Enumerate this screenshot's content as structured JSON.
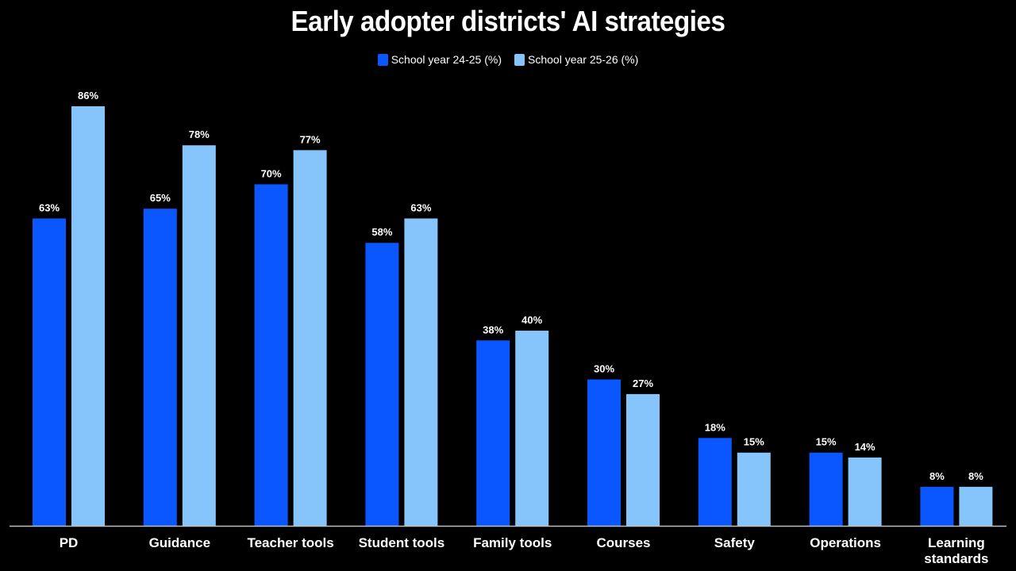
{
  "chart_data": {
    "type": "bar",
    "title": "Early adopter districts' AI strategies",
    "categories": [
      "PD",
      "Guidance",
      "Teacher tools",
      "Student tools",
      "Family tools",
      "Courses",
      "Safety",
      "Operations",
      "Learning standards"
    ],
    "category_lines": [
      [
        "PD"
      ],
      [
        "Guidance"
      ],
      [
        "Teacher tools"
      ],
      [
        "Student tools"
      ],
      [
        "Family tools"
      ],
      [
        "Courses"
      ],
      [
        "Safety"
      ],
      [
        "Operations"
      ],
      [
        "Learning",
        "standards"
      ]
    ],
    "series": [
      {
        "name": "School year 24-25 (%)",
        "values": [
          63,
          65,
          70,
          58,
          38,
          30,
          18,
          15,
          8
        ],
        "color": "#0a57ff"
      },
      {
        "name": "School year 25-26 (%)",
        "values": [
          86,
          78,
          77,
          63,
          40,
          27,
          15,
          14,
          8
        ],
        "color": "#86c4fc"
      }
    ],
    "ylim": [
      0,
      100
    ],
    "value_suffix": "%",
    "legend_position": "top-center",
    "grid": false
  }
}
